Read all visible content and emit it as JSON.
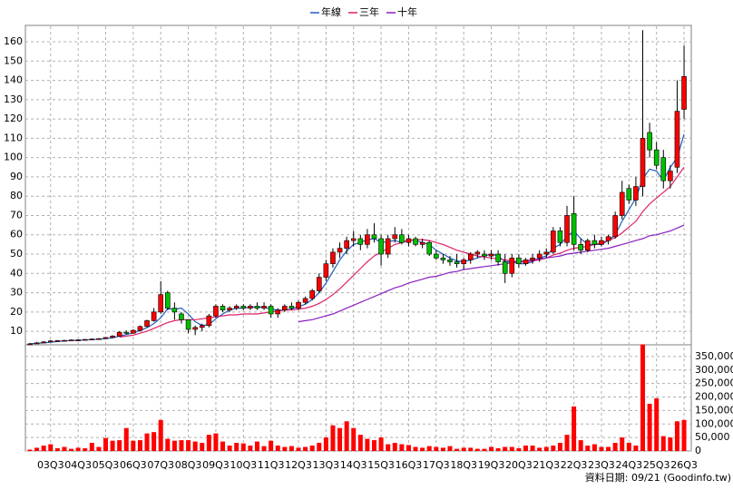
{
  "chart_data": {
    "type": "candlestick",
    "categories": [
      null,
      null,
      null,
      "03Q3",
      null,
      null,
      null,
      "04Q3",
      null,
      null,
      null,
      "05Q3",
      null,
      null,
      null,
      "06Q3",
      null,
      null,
      null,
      "07Q3",
      null,
      null,
      null,
      "08Q3",
      null,
      null,
      null,
      "09Q3",
      null,
      null,
      null,
      "10Q3",
      null,
      null,
      null,
      "11Q3",
      null,
      null,
      null,
      "12Q3",
      null,
      null,
      null,
      "13Q3",
      null,
      null,
      null,
      "14Q3",
      null,
      null,
      null,
      "15Q3",
      null,
      null,
      null,
      "16Q3",
      null,
      null,
      null,
      "17Q3",
      null,
      null,
      null,
      "18Q3",
      null,
      null,
      null,
      "19Q3",
      null,
      null,
      null,
      "20Q3",
      null,
      null,
      null,
      "21Q3",
      null,
      null,
      null,
      "22Q3",
      null,
      null,
      null,
      "23Q3",
      null,
      null,
      null,
      "24Q3",
      null,
      null,
      null,
      "25Q3",
      null,
      null,
      null,
      "26Q3"
    ],
    "open": [
      3.5,
      3.5,
      4,
      4.5,
      5,
      5.2,
      5.3,
      5.5,
      5.5,
      5.8,
      6,
      6.2,
      6.8,
      7.5,
      9.5,
      9,
      10.5,
      12.5,
      15.5,
      20,
      30,
      22,
      19,
      16,
      11,
      12,
      13,
      18,
      23,
      21,
      22,
      23,
      22,
      23,
      22,
      23,
      19,
      21,
      23,
      22,
      25,
      27,
      31,
      38,
      45,
      51,
      53,
      57,
      58,
      55,
      60,
      58,
      50,
      58,
      60,
      56,
      58,
      55,
      56,
      50,
      48,
      47,
      46,
      45,
      47,
      50,
      50,
      49,
      50,
      46,
      40,
      48,
      45,
      47,
      48,
      50,
      51,
      62,
      56,
      71,
      55,
      52,
      57,
      55,
      57,
      59,
      70,
      84,
      78,
      85,
      113,
      104,
      100,
      88,
      95,
      125
    ],
    "high": [
      4,
      4.5,
      5,
      5.5,
      5.5,
      5.6,
      5.8,
      5.8,
      6,
      6.3,
      6.5,
      7,
      8,
      10,
      10.5,
      11,
      13,
      16,
      22,
      36,
      31,
      25,
      20,
      16,
      13,
      14,
      19,
      24,
      24,
      23,
      24,
      24,
      24,
      25,
      25,
      24,
      22,
      24,
      25,
      26,
      28,
      32,
      40,
      47,
      53,
      56,
      59,
      62,
      60,
      63,
      66,
      60,
      60,
      64,
      63,
      60,
      59,
      58,
      57,
      52,
      50,
      49,
      50,
      48,
      51,
      52,
      52,
      52,
      52,
      50,
      50,
      50,
      48,
      50,
      52,
      53,
      64,
      64,
      75,
      80,
      58,
      58,
      60,
      59,
      60,
      72,
      88,
      86,
      90,
      166,
      118,
      108,
      104,
      96,
      140,
      158
    ],
    "low": [
      3,
      3.5,
      4,
      4.5,
      4.8,
      5,
      5.1,
      5.3,
      5.3,
      5.6,
      5.8,
      6,
      6.5,
      7.3,
      8.5,
      8.8,
      10,
      12,
      15,
      19,
      21,
      16,
      14,
      9,
      8,
      10,
      12,
      17,
      20,
      20,
      21,
      21,
      21,
      21,
      21,
      17,
      17,
      20,
      21,
      21,
      24,
      26,
      30,
      36,
      43,
      48,
      50,
      54,
      52,
      53,
      56,
      44,
      48,
      56,
      55,
      54,
      54,
      53,
      49,
      47,
      45,
      44,
      43,
      42,
      45,
      48,
      47,
      47,
      44,
      35,
      38,
      43,
      44,
      45,
      46,
      48,
      50,
      54,
      54,
      52,
      50,
      51,
      53,
      54,
      55,
      58,
      68,
      76,
      75,
      80,
      100,
      94,
      84,
      84,
      92,
      120
    ],
    "close": [
      3.5,
      4,
      4.5,
      5,
      5.2,
      5.3,
      5.5,
      5.5,
      5.8,
      6,
      6.2,
      6.8,
      7.5,
      9.5,
      9,
      10.5,
      12.5,
      15.5,
      20,
      29,
      22,
      20,
      16,
      11,
      12,
      13,
      18,
      23,
      21,
      22,
      23,
      22,
      23,
      22,
      23,
      19,
      21,
      23,
      22,
      25,
      27,
      31,
      38,
      45,
      51,
      53,
      57,
      58,
      55,
      60,
      58,
      50,
      58,
      60,
      56,
      58,
      55,
      56,
      50,
      48,
      47,
      46,
      45,
      47,
      50,
      51,
      49,
      50,
      46,
      40,
      48,
      45,
      47,
      48,
      50,
      51,
      62,
      56,
      70,
      55,
      52,
      57,
      55,
      57,
      59,
      70,
      82,
      78,
      85,
      110,
      104,
      96,
      88,
      93,
      124,
      142
    ],
    "up_color": "#ff0000",
    "down_color": "#00c000",
    "series": [
      {
        "name": "年線",
        "color": "#1f5fbf",
        "values": [
          3.5,
          3.8,
          4,
          4.3,
          4.7,
          5,
          5.2,
          5.4,
          5.5,
          5.7,
          5.9,
          6.2,
          6.6,
          7.5,
          8.3,
          9.2,
          10.4,
          11.9,
          14,
          17,
          21.6,
          21.5,
          22,
          19,
          15,
          13,
          13.5,
          16.5,
          19,
          21,
          22,
          22,
          22.5,
          22.5,
          22.5,
          21.5,
          21,
          21,
          21.5,
          22.8,
          24,
          26.5,
          30,
          35,
          41,
          47,
          51.5,
          55,
          56,
          57.5,
          58,
          56,
          56.5,
          57,
          56,
          57.5,
          57,
          56,
          55,
          52,
          50,
          48,
          46.5,
          46,
          47,
          48,
          49,
          50,
          49,
          46,
          46,
          45,
          45,
          46,
          48,
          49,
          53,
          55,
          59,
          62,
          58,
          55,
          55,
          55,
          57,
          60,
          67,
          73,
          79,
          89,
          94,
          93,
          88,
          95,
          100,
          112
        ]
      },
      {
        "name": "三年",
        "color": "#e0206a",
        "values": [
          null,
          null,
          null,
          null,
          null,
          null,
          null,
          null,
          null,
          null,
          null,
          null,
          null,
          7,
          7.5,
          8,
          9,
          10,
          11.5,
          13,
          14.5,
          15.5,
          16,
          16,
          16,
          16.5,
          17,
          17.5,
          18,
          18.5,
          18.5,
          19,
          19,
          19,
          19.5,
          20,
          20.5,
          21,
          21,
          21.5,
          22,
          23,
          24.5,
          26.5,
          29,
          32,
          35.5,
          39,
          42.5,
          46,
          49,
          51,
          53,
          55,
          56,
          57,
          57.5,
          57.5,
          57,
          56,
          55,
          53.5,
          52,
          51,
          50,
          49,
          48.5,
          48,
          47.5,
          47,
          46.5,
          46,
          46,
          46.5,
          47,
          48,
          49.5,
          50.5,
          52,
          53,
          53.5,
          54,
          55,
          56,
          57,
          58.5,
          61,
          64,
          67,
          72,
          76,
          79,
          82,
          85,
          90,
          95
        ]
      },
      {
        "name": "十年",
        "color": "#8a1fc0",
        "values": [
          null,
          null,
          null,
          null,
          null,
          null,
          null,
          null,
          null,
          null,
          null,
          null,
          null,
          null,
          null,
          null,
          null,
          null,
          null,
          null,
          null,
          null,
          null,
          null,
          null,
          null,
          null,
          null,
          null,
          null,
          null,
          null,
          null,
          null,
          null,
          null,
          null,
          null,
          null,
          15,
          15.5,
          16,
          17,
          18,
          19,
          20.5,
          22,
          23.5,
          25,
          26.5,
          28,
          29.5,
          31,
          32.5,
          33.5,
          35,
          36,
          37,
          38,
          38.5,
          39.5,
          40.5,
          41,
          42,
          42.5,
          43,
          43.5,
          44,
          44.5,
          45,
          45.5,
          46,
          46.5,
          47,
          47.5,
          48,
          48.5,
          49,
          50,
          50.5,
          51,
          51.5,
          52,
          52.5,
          53,
          54,
          55,
          56,
          57,
          58,
          59.5,
          60,
          61,
          62,
          63.5,
          65
        ]
      }
    ],
    "ylim": [
      3,
      168
    ],
    "yticks": [
      10,
      20,
      30,
      40,
      50,
      60,
      70,
      80,
      90,
      100,
      110,
      120,
      130,
      140,
      150,
      160
    ],
    "grid": true,
    "volume": {
      "color": "#ff0000",
      "values": [
        5000,
        12000,
        20000,
        25000,
        10000,
        15000,
        8000,
        12000,
        10000,
        30000,
        15000,
        48000,
        38000,
        40000,
        85000,
        38000,
        40000,
        65000,
        70000,
        115000,
        45000,
        38000,
        40000,
        40000,
        35000,
        30000,
        60000,
        65000,
        35000,
        20000,
        30000,
        28000,
        20000,
        35000,
        18000,
        38000,
        20000,
        15000,
        18000,
        12000,
        15000,
        20000,
        30000,
        50000,
        95000,
        85000,
        110000,
        85000,
        60000,
        45000,
        40000,
        50000,
        25000,
        30000,
        25000,
        22000,
        15000,
        12000,
        18000,
        15000,
        12000,
        18000,
        8000,
        12000,
        12000,
        8000,
        8000,
        15000,
        10000,
        15000,
        15000,
        10000,
        20000,
        20000,
        12000,
        15000,
        20000,
        30000,
        60000,
        165000,
        40000,
        20000,
        25000,
        15000,
        15000,
        30000,
        50000,
        30000,
        20000,
        395000,
        175000,
        195000,
        55000,
        50000,
        110000,
        115000
      ],
      "ylim": [
        0,
        400000
      ],
      "yticks": [
        0,
        {
          "value": 50000,
          "label": "50,000"
        },
        {
          "value": 100000,
          "label": "100,000"
        },
        {
          "value": 150000,
          "label": "150,000"
        },
        {
          "value": 200000,
          "label": "200,000"
        },
        {
          "value": 250000,
          "label": "250,000"
        },
        {
          "value": 300000,
          "label": "300,000"
        },
        {
          "value": 350000,
          "label": "350,000"
        }
      ]
    },
    "footer": "資料日期: 09/21  (Goodinfo.tw)"
  }
}
